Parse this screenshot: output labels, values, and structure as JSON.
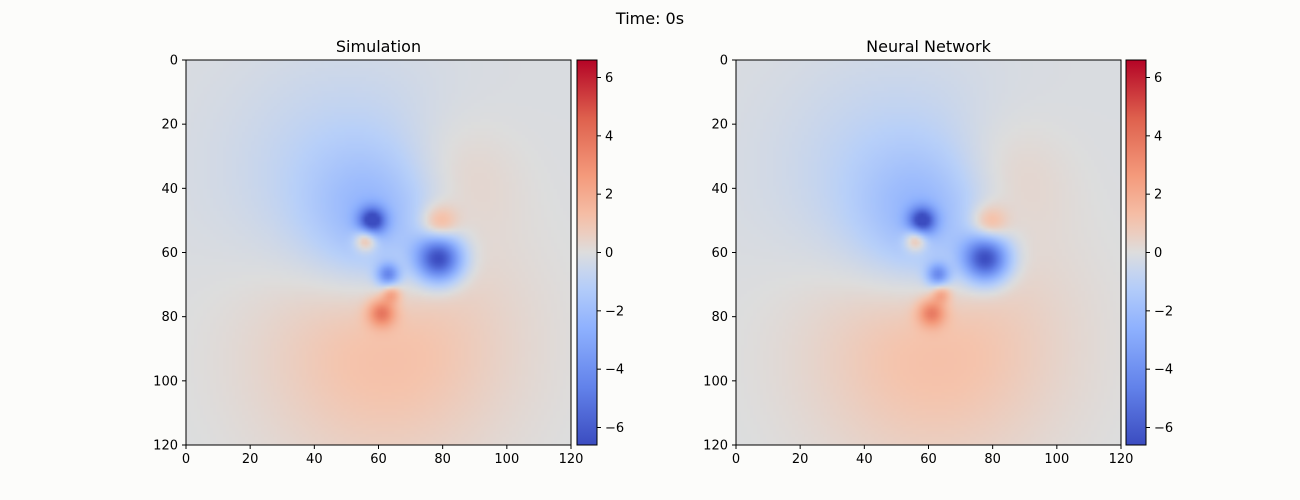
{
  "figure": {
    "suptitle": "Time: 0s"
  },
  "chart_data": [
    {
      "type": "heatmap",
      "title": "Simulation",
      "xlabel": "",
      "ylabel": "",
      "xlim": [
        0,
        120
      ],
      "ylim": [
        120,
        0
      ],
      "xticks": [
        0,
        20,
        40,
        60,
        80,
        100,
        120
      ],
      "yticks": [
        0,
        20,
        40,
        60,
        80,
        100,
        120
      ],
      "colormap": "coolwarm",
      "colorbar": {
        "min": -6.6,
        "max": 6.6,
        "ticks": [
          -6,
          -4,
          -2,
          0,
          2,
          4,
          6
        ]
      },
      "grid": false,
      "background_value": -0.1,
      "features": [
        {
          "x": 58,
          "y": 50,
          "value": -5.5,
          "spread": 3
        },
        {
          "x": 56,
          "y": 56,
          "value": 3.0,
          "spread": 2.5
        },
        {
          "x": 79,
          "y": 62,
          "value": -6.5,
          "spread": 5
        },
        {
          "x": 63,
          "y": 67,
          "value": -4.0,
          "spread": 2.5
        },
        {
          "x": 79,
          "y": 51,
          "value": 2.0,
          "spread": 4
        },
        {
          "x": 61,
          "y": 79,
          "value": 3.2,
          "spread": 3
        },
        {
          "x": 64,
          "y": 73,
          "value": 2.0,
          "spread": 2
        },
        {
          "x": 60,
          "y": 50,
          "value": -2.0,
          "spread": 15
        },
        {
          "x": 50,
          "y": 38,
          "value": -1.0,
          "spread": 25
        },
        {
          "x": 82,
          "y": 38,
          "value": 0.8,
          "spread": 14
        },
        {
          "x": 62,
          "y": 88,
          "value": 1.4,
          "spread": 28
        }
      ]
    },
    {
      "type": "heatmap",
      "title": "Neural Network",
      "xlabel": "",
      "ylabel": "",
      "xlim": [
        0,
        120
      ],
      "ylim": [
        120,
        0
      ],
      "xticks": [
        0,
        20,
        40,
        60,
        80,
        100,
        120
      ],
      "yticks": [
        0,
        20,
        40,
        60,
        80,
        100,
        120
      ],
      "colormap": "coolwarm",
      "colorbar": {
        "min": -6.6,
        "max": 6.6,
        "ticks": [
          -6,
          -4,
          -2,
          0,
          2,
          4,
          6
        ]
      },
      "grid": false,
      "background_value": -0.1,
      "features": [
        {
          "x": 58,
          "y": 50,
          "value": -5.3,
          "spread": 3
        },
        {
          "x": 56,
          "y": 56,
          "value": 2.9,
          "spread": 2.5
        },
        {
          "x": 78,
          "y": 62,
          "value": -6.4,
          "spread": 5
        },
        {
          "x": 63,
          "y": 67,
          "value": -3.8,
          "spread": 2.5
        },
        {
          "x": 79,
          "y": 51,
          "value": 1.9,
          "spread": 4
        },
        {
          "x": 61,
          "y": 79,
          "value": 3.0,
          "spread": 3
        },
        {
          "x": 64,
          "y": 73,
          "value": 1.9,
          "spread": 2
        },
        {
          "x": 60,
          "y": 50,
          "value": -2.0,
          "spread": 15
        },
        {
          "x": 50,
          "y": 38,
          "value": -1.0,
          "spread": 25
        },
        {
          "x": 82,
          "y": 38,
          "value": 0.8,
          "spread": 14
        },
        {
          "x": 62,
          "y": 88,
          "value": 1.4,
          "spread": 28
        }
      ]
    }
  ]
}
